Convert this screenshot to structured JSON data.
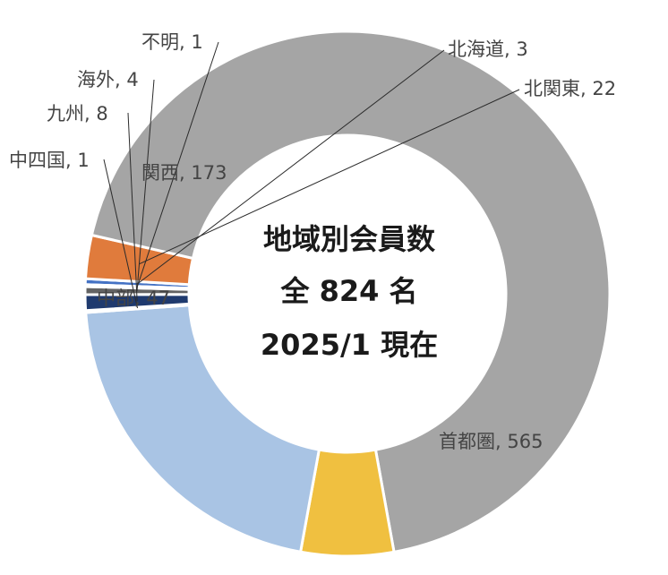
{
  "chart_data": {
    "type": "pie",
    "subtype": "donut",
    "center_lines": [
      "地域別会員数",
      "全 824 名",
      "2025/1 現在"
    ],
    "categories": [
      "北海道",
      "北関東",
      "首都圏",
      "中部",
      "関西",
      "中四国",
      "九州",
      "海外",
      "不明"
    ],
    "values": [
      3,
      22,
      565,
      47,
      173,
      1,
      8,
      4,
      1
    ],
    "colors": [
      "#4472c4",
      "#e07b3c",
      "#a5a5a5",
      "#f0c040",
      "#a9c4e4",
      "#264478",
      "#1f3a6e",
      "#636363",
      "#9c9c9c"
    ],
    "labels": [
      "北海道, 3",
      "北関東, 22",
      "首都圏, 565",
      "中部, 47",
      "関西, 173",
      "中四国, 1",
      "九州, 8",
      "海外, 4",
      "不明, 1"
    ],
    "legend": "none"
  }
}
